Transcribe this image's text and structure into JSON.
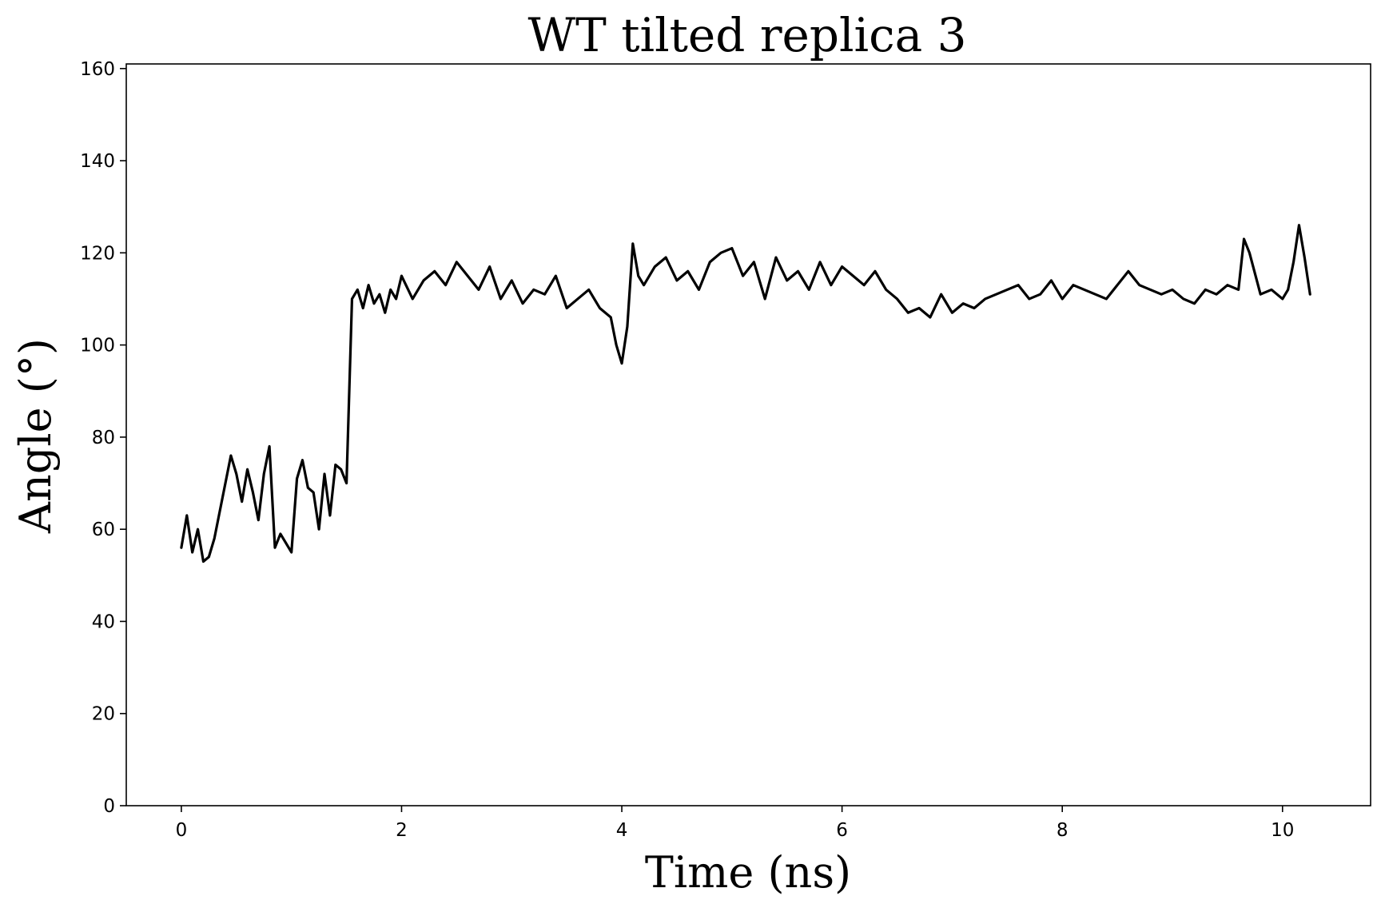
{
  "chart_data": {
    "type": "line",
    "title": "WT tilted replica 3",
    "xlabel": "Time (ns)",
    "ylabel": "Angle (°)",
    "xlim": [
      -0.5,
      10.8
    ],
    "ylim": [
      0,
      161
    ],
    "xticks": [
      0,
      2,
      4,
      6,
      8,
      10
    ],
    "yticks": [
      0,
      20,
      40,
      60,
      80,
      100,
      120,
      140,
      160
    ],
    "grid": false,
    "legend": "none",
    "line_color": "#000000",
    "series": [
      {
        "x": [
          0,
          0.05,
          0.1,
          0.15,
          0.2,
          0.25,
          0.3,
          0.35,
          0.4,
          0.45,
          0.5,
          0.55,
          0.6,
          0.65,
          0.7,
          0.75,
          0.8,
          0.85,
          0.9,
          0.95,
          1.0,
          1.05,
          1.1,
          1.15,
          1.2,
          1.25,
          1.3,
          1.35,
          1.4,
          1.45,
          1.5,
          1.55,
          1.6,
          1.65,
          1.7,
          1.75,
          1.8,
          1.85,
          1.9,
          1.95,
          2.0,
          2.1,
          2.2,
          2.3,
          2.4,
          2.5,
          2.6,
          2.7,
          2.8,
          2.9,
          3.0,
          3.1,
          3.2,
          3.3,
          3.4,
          3.5,
          3.6,
          3.7,
          3.8,
          3.9,
          3.95,
          4.0,
          4.05,
          4.1,
          4.15,
          4.2,
          4.3,
          4.4,
          4.5,
          4.6,
          4.7,
          4.8,
          4.9,
          5.0,
          5.1,
          5.2,
          5.3,
          5.4,
          5.5,
          5.6,
          5.7,
          5.8,
          5.9,
          6.0,
          6.1,
          6.2,
          6.3,
          6.4,
          6.5,
          6.6,
          6.7,
          6.8,
          6.9,
          7.0,
          7.1,
          7.2,
          7.3,
          7.4,
          7.5,
          7.6,
          7.7,
          7.8,
          7.9,
          8.0,
          8.1,
          8.2,
          8.3,
          8.4,
          8.5,
          8.6,
          8.7,
          8.8,
          8.9,
          9.0,
          9.1,
          9.2,
          9.3,
          9.4,
          9.5,
          9.6,
          9.65,
          9.7,
          9.8,
          9.9,
          10.0,
          10.05,
          10.1,
          10.15,
          10.2,
          10.25
        ],
        "y": [
          56,
          63,
          55,
          60,
          53,
          54,
          58,
          64,
          70,
          76,
          72,
          66,
          73,
          68,
          62,
          72,
          78,
          56,
          59,
          57,
          55,
          71,
          75,
          69,
          68,
          60,
          72,
          63,
          74,
          73,
          70,
          110,
          112,
          108,
          113,
          109,
          111,
          107,
          112,
          110,
          115,
          110,
          114,
          116,
          113,
          118,
          115,
          112,
          117,
          110,
          114,
          109,
          112,
          111,
          115,
          108,
          110,
          112,
          108,
          106,
          100,
          96,
          104,
          122,
          115,
          113,
          117,
          119,
          114,
          116,
          112,
          118,
          120,
          121,
          115,
          118,
          110,
          119,
          114,
          116,
          112,
          118,
          113,
          117,
          115,
          113,
          116,
          112,
          110,
          107,
          108,
          106,
          111,
          107,
          109,
          108,
          110,
          111,
          112,
          113,
          110,
          111,
          114,
          110,
          113,
          112,
          111,
          110,
          113,
          116,
          113,
          112,
          111,
          112,
          110,
          109,
          112,
          111,
          113,
          112,
          123,
          120,
          111,
          112,
          110,
          112,
          118,
          126,
          119,
          111
        ]
      }
    ]
  }
}
